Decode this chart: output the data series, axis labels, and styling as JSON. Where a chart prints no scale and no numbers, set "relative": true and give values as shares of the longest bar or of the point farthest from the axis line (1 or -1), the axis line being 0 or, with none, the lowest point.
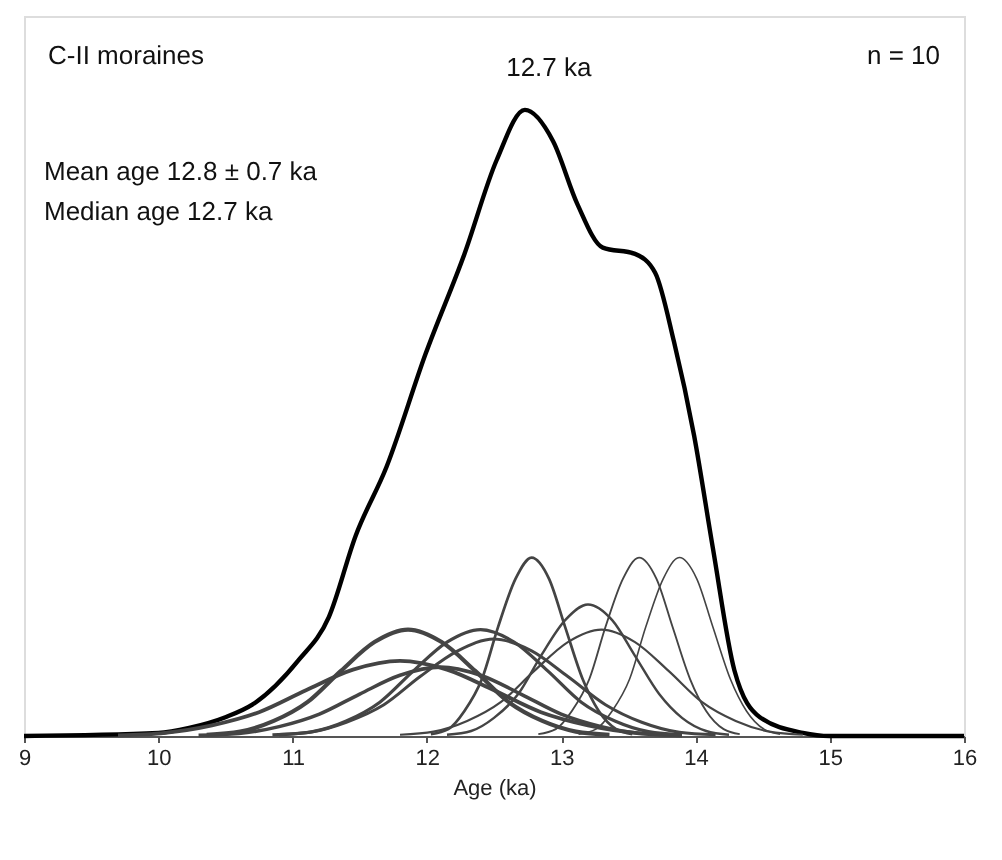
{
  "chart_data": {
    "type": "line",
    "relative": true,
    "xlabel": "Age (ka)",
    "xlim": [
      9,
      16
    ],
    "xticks": [
      9,
      10,
      11,
      12,
      13,
      14,
      15,
      16
    ],
    "grid": false,
    "legend": false,
    "marker": "none",
    "line_style": "solid",
    "annotations": [
      "C-II moraines",
      "n = 10",
      {
        "text": "12.7 ka",
        "x": 12.7,
        "y": 1.0
      },
      "Mean age 12.8 ± 0.7 ka",
      "Median age 12.7 ka"
    ],
    "series": [
      {
        "color": "#000000",
        "x": [
          9,
          10,
          10.23,
          10.5,
          10.7,
          11.04,
          11.27,
          11.47,
          11.7,
          11.99,
          12.28,
          12.52,
          12.73,
          12.94,
          13.12,
          13.31,
          13.55,
          13.7,
          13.84,
          13.99,
          14.13,
          14.29,
          14.48,
          14.8,
          15,
          16
        ],
        "values": [
          0,
          0.005,
          0.013,
          0.03,
          0.05,
          0.12,
          0.19,
          0.32,
          0.43,
          0.61,
          0.77,
          0.92,
          1.0,
          0.95,
          0.85,
          0.78,
          0.77,
          0.74,
          0.63,
          0.48,
          0.3,
          0.105,
          0.03,
          0.005,
          0,
          0
        ]
      },
      {
        "color": "#444444",
        "x": [
          10.36,
          10.61,
          10.86,
          11.11,
          11.36,
          11.61,
          11.86,
          12.11,
          12.36,
          12.61,
          12.86,
          13.11,
          13.36
        ],
        "values": [
          0.002,
          0.007,
          0.024,
          0.054,
          0.104,
          0.15,
          0.17,
          0.15,
          0.104,
          0.054,
          0.024,
          0.007,
          0.002
        ]
      },
      {
        "color": "#444444",
        "x": [
          9.7,
          10.05,
          10.4,
          10.75,
          11.1,
          11.45,
          11.8,
          12.15,
          12.5,
          12.85,
          13.2,
          13.55,
          13.9
        ],
        "values": [
          0.001,
          0.005,
          0.017,
          0.038,
          0.073,
          0.106,
          0.12,
          0.106,
          0.073,
          0.038,
          0.017,
          0.005,
          0.001
        ]
      },
      {
        "color": "#444444",
        "x": [
          10.3,
          10.6,
          10.9,
          11.2,
          11.5,
          11.8,
          12.1,
          12.4,
          12.7,
          13.0,
          13.3,
          13.6,
          13.9
        ],
        "values": [
          0.001,
          0.004,
          0.015,
          0.035,
          0.067,
          0.097,
          0.11,
          0.097,
          0.067,
          0.035,
          0.015,
          0.004,
          0.001
        ]
      },
      {
        "color": "#444444",
        "x": [
          10.9,
          11.15,
          11.4,
          11.65,
          11.9,
          12.15,
          12.4,
          12.65,
          12.9,
          13.15,
          13.4,
          13.65,
          13.9
        ],
        "values": [
          0.002,
          0.007,
          0.024,
          0.054,
          0.104,
          0.15,
          0.17,
          0.15,
          0.104,
          0.054,
          0.024,
          0.007,
          0.002
        ]
      },
      {
        "color": "#444444",
        "x": [
          10.85,
          11.13,
          11.4,
          11.68,
          11.95,
          12.23,
          12.5,
          12.78,
          13.05,
          13.33,
          13.6,
          13.88,
          14.15
        ],
        "values": [
          0.002,
          0.006,
          0.022,
          0.05,
          0.095,
          0.136,
          0.155,
          0.136,
          0.095,
          0.05,
          0.022,
          0.006,
          0.002
        ]
      },
      {
        "color": "#444444",
        "x": [
          12.03,
          12.16,
          12.28,
          12.41,
          12.53,
          12.66,
          12.78,
          12.91,
          13.03,
          13.16,
          13.28,
          13.41,
          13.53
        ],
        "values": [
          0.003,
          0.011,
          0.04,
          0.091,
          0.174,
          0.251,
          0.285,
          0.251,
          0.174,
          0.091,
          0.04,
          0.011,
          0.003
        ]
      },
      {
        "color": "#444444",
        "x": [
          12.15,
          12.33,
          12.5,
          12.68,
          12.85,
          13.03,
          13.2,
          13.38,
          13.55,
          13.73,
          13.9,
          14.08,
          14.25
        ],
        "values": [
          0.002,
          0.008,
          0.029,
          0.067,
          0.128,
          0.185,
          0.21,
          0.185,
          0.128,
          0.067,
          0.029,
          0.008,
          0.002
        ]
      },
      {
        "color": "#444444",
        "x": [
          11.8,
          12.05,
          12.3,
          12.55,
          12.8,
          13.05,
          13.3,
          13.55,
          13.8,
          14.05,
          14.3,
          14.55,
          14.8
        ],
        "values": [
          0.002,
          0.007,
          0.024,
          0.054,
          0.104,
          0.15,
          0.17,
          0.15,
          0.104,
          0.054,
          0.024,
          0.007,
          0.002
        ]
      },
      {
        "color": "#444444",
        "x": [
          12.83,
          12.96,
          13.08,
          13.21,
          13.33,
          13.46,
          13.58,
          13.71,
          13.83,
          13.96,
          14.08,
          14.21,
          14.33
        ],
        "values": [
          0.003,
          0.011,
          0.04,
          0.091,
          0.174,
          0.251,
          0.285,
          0.251,
          0.174,
          0.091,
          0.04,
          0.011,
          0.003
        ]
      },
      {
        "color": "#444444",
        "x": [
          13.13,
          13.26,
          13.38,
          13.51,
          13.63,
          13.76,
          13.88,
          14.01,
          14.13,
          14.26,
          14.38,
          14.51,
          14.63
        ],
        "values": [
          0.003,
          0.011,
          0.04,
          0.091,
          0.174,
          0.251,
          0.285,
          0.251,
          0.174,
          0.091,
          0.04,
          0.011,
          0.003
        ]
      }
    ]
  }
}
